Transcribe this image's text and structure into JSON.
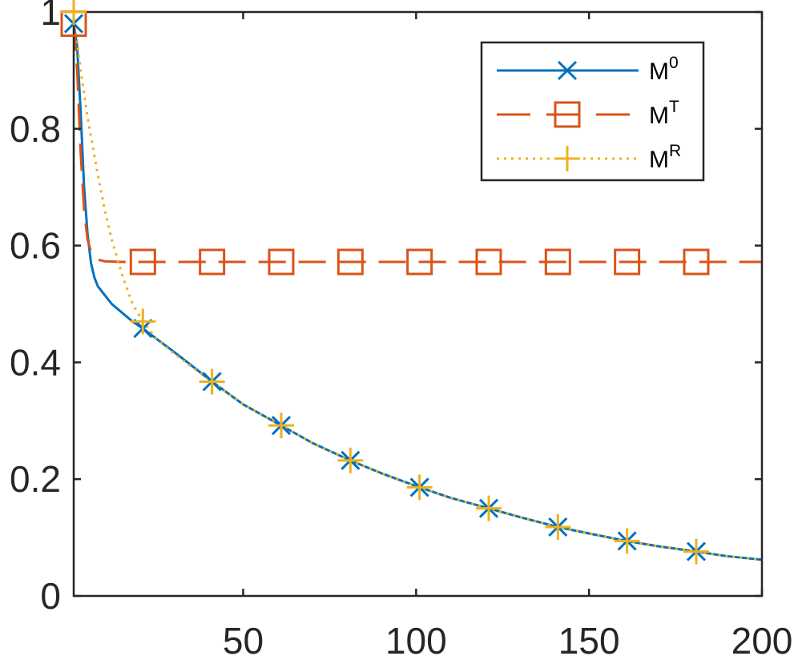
{
  "chart_data": {
    "type": "line",
    "title": "",
    "xlabel": "",
    "ylabel": "",
    "xlim": [
      1,
      200
    ],
    "ylim": [
      0,
      1
    ],
    "grid": false,
    "legend_position": "top-right",
    "x_ticks": [
      50,
      100,
      150,
      200
    ],
    "x_tick_labels": [
      "50",
      "100",
      "150",
      "200"
    ],
    "y_ticks": [
      0,
      0.2,
      0.4,
      0.6,
      0.8,
      1
    ],
    "y_tick_labels": [
      "0",
      "0.2",
      "0.4",
      "0.6",
      "0.8",
      "1"
    ],
    "series": [
      {
        "name": "M0",
        "legend_base": "M",
        "legend_sup": "0",
        "color": "#0072BD",
        "line_style": "solid",
        "marker": "x",
        "x": [
          1,
          2,
          3,
          4,
          5,
          6,
          7,
          8,
          10,
          12,
          15,
          18,
          21,
          25,
          30,
          35,
          41,
          50,
          61,
          70,
          81,
          90,
          101,
          110,
          121,
          130,
          141,
          150,
          161,
          170,
          181,
          190,
          200
        ],
        "y": [
          0.98,
          0.94,
          0.83,
          0.7,
          0.62,
          0.57,
          0.545,
          0.53,
          0.515,
          0.5,
          0.485,
          0.47,
          0.458,
          0.44,
          0.418,
          0.395,
          0.367,
          0.328,
          0.292,
          0.262,
          0.232,
          0.21,
          0.186,
          0.168,
          0.15,
          0.135,
          0.118,
          0.107,
          0.094,
          0.085,
          0.076,
          0.068,
          0.062
        ],
        "marker_x": [
          1,
          21,
          41,
          61,
          81,
          101,
          121,
          141,
          161,
          181
        ],
        "marker_y": [
          0.98,
          0.458,
          0.367,
          0.292,
          0.232,
          0.186,
          0.15,
          0.118,
          0.094,
          0.076
        ]
      },
      {
        "name": "MT",
        "legend_base": "M",
        "legend_sup": "T",
        "color": "#D95319",
        "line_style": "dashed",
        "marker": "square",
        "x": [
          1,
          2,
          3,
          4,
          5,
          6,
          7,
          8,
          10,
          15,
          21,
          200
        ],
        "y": [
          0.98,
          0.9,
          0.76,
          0.66,
          0.61,
          0.59,
          0.58,
          0.576,
          0.573,
          0.572,
          0.572,
          0.572
        ],
        "marker_x": [
          1,
          21,
          41,
          61,
          81,
          101,
          121,
          141,
          161,
          181
        ],
        "marker_y": [
          0.98,
          0.572,
          0.572,
          0.572,
          0.572,
          0.572,
          0.572,
          0.572,
          0.572,
          0.572
        ]
      },
      {
        "name": "MR",
        "legend_base": "M",
        "legend_sup": "R",
        "color": "#EDB120",
        "line_style": "dotted",
        "marker": "plus",
        "x": [
          1,
          3,
          5,
          8,
          10,
          12,
          15,
          18,
          21,
          25,
          30,
          35,
          41,
          50,
          61,
          70,
          81,
          90,
          101,
          110,
          121,
          130,
          141,
          150,
          161,
          170,
          181,
          190,
          200
        ],
        "y": [
          1.0,
          0.9,
          0.82,
          0.72,
          0.66,
          0.61,
          0.55,
          0.5,
          0.47,
          0.44,
          0.415,
          0.393,
          0.367,
          0.328,
          0.292,
          0.262,
          0.232,
          0.21,
          0.186,
          0.168,
          0.15,
          0.135,
          0.118,
          0.107,
          0.094,
          0.085,
          0.076,
          0.068,
          0.062
        ],
        "marker_x": [
          1,
          21,
          41,
          61,
          81,
          101,
          121,
          141,
          161,
          181
        ],
        "marker_y": [
          1.0,
          0.47,
          0.367,
          0.292,
          0.232,
          0.186,
          0.15,
          0.118,
          0.094,
          0.076
        ]
      }
    ]
  }
}
